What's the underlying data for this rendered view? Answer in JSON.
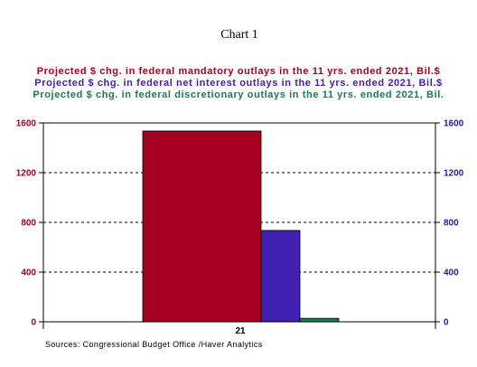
{
  "chart_data": {
    "type": "bar",
    "title": "Chart 1",
    "categories": [
      "21"
    ],
    "series": [
      {
        "name": "Projected $ chg. in federal mandatory outlays in the 11 yrs. ended 2021, Bil.$",
        "values": [
          1535
        ],
        "color": "#a50021"
      },
      {
        "name": "Projected $ chg. in federal net interest outlays in the 11 yrs. ended 2021, Bil.$",
        "values": [
          735
        ],
        "color": "#4020b0"
      },
      {
        "name": "Projected $ chg. in federal discretionary outlays in the 11 yrs. ended 2021, Bil.",
        "values": [
          28
        ],
        "color": "#1a7a50"
      }
    ],
    "ylim": [
      0,
      1600
    ],
    "yticks": [
      0,
      400,
      800,
      1200,
      1600
    ],
    "ytick_labels": [
      "0",
      "400",
      "800",
      "1200",
      "1600"
    ],
    "left_axis_color": "#a50021",
    "right_axis_color": "#2a1a8c",
    "grid": "horizontal dashed",
    "legend_placement": "top",
    "source": "Sources:  Congressional Budget Office /Haver Analytics"
  }
}
